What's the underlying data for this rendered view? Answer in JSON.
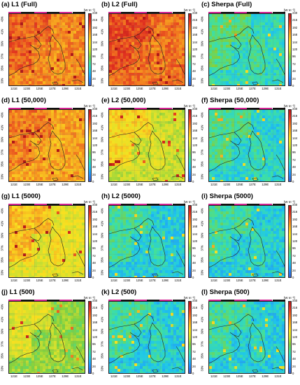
{
  "unit_label": "[W m⁻²]",
  "colorbar_ticks": [
    "240",
    "216",
    "192",
    "168",
    "144",
    "120",
    "96",
    "72",
    "48",
    "24",
    "0"
  ],
  "lat_labels": [
    "43N",
    "41N",
    "39N",
    "37N",
    "35N",
    "33N"
  ],
  "lon_labels": [
    "121E",
    "123E",
    "125E",
    "127E",
    "129E",
    "131E"
  ],
  "colors": {
    "colormap": [
      "#3b5cc8",
      "#1e90ff",
      "#20c8e8",
      "#40e0a0",
      "#7fd040",
      "#d0e030",
      "#f8e020",
      "#f8b020",
      "#f07020",
      "#e03020",
      "#b01818"
    ]
  },
  "panels": [
    {
      "title": "(a) L1 (Full)",
      "level": 0.76
    },
    {
      "title": "(b) L2 (Full)",
      "level": 0.8
    },
    {
      "title": "(c) Sherpa (Full)",
      "level": 0.26
    },
    {
      "title": "(d) L1 (50,000)",
      "level": 0.72
    },
    {
      "title": "(e) L2 (50,000)",
      "level": 0.5
    },
    {
      "title": "(f) Sherpa (50,000)",
      "level": 0.24
    },
    {
      "title": "(g) L1 (5000)",
      "level": 0.55
    },
    {
      "title": "(h) L2 (5000)",
      "level": 0.22
    },
    {
      "title": "(i) Sherpa (5000)",
      "level": 0.22
    },
    {
      "title": "(j) L1 (500)",
      "level": 0.42
    },
    {
      "title": "(k) L2 (500)",
      "level": 0.22
    },
    {
      "title": "(l) Sherpa (500)",
      "level": 0.22
    }
  ]
}
